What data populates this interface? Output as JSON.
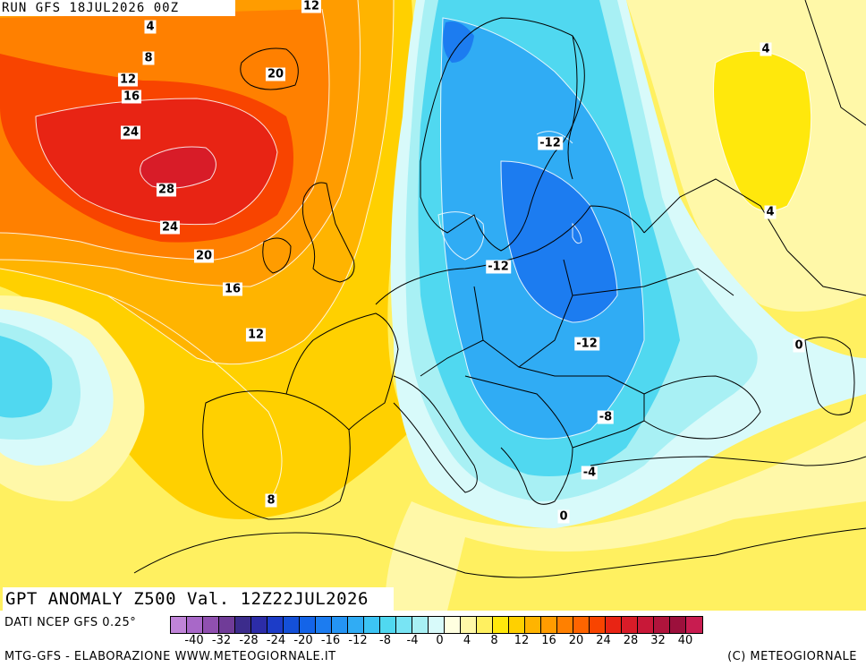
{
  "map": {
    "run_label": "RUN GFS 18JUL2026 00Z",
    "title": "GPT ANOMALY Z500 Val. 12Z22JUL2026",
    "contour_labels": [
      {
        "text": "4",
        "pos": "north-atlantic-top"
      },
      {
        "text": "8",
        "pos": "north-atlantic"
      },
      {
        "text": "12",
        "pos": "north-atlantic"
      },
      {
        "text": "16",
        "pos": "north-atlantic"
      },
      {
        "text": "24",
        "pos": "north-atlantic"
      },
      {
        "text": "28",
        "pos": "north-atlantic-core"
      },
      {
        "text": "24",
        "pos": "north-atlantic"
      },
      {
        "text": "20",
        "pos": "north-atlantic"
      },
      {
        "text": "20",
        "pos": "iceland"
      },
      {
        "text": "16",
        "pos": "ireland"
      },
      {
        "text": "12",
        "pos": "bay-of-biscay"
      },
      {
        "text": "12",
        "pos": "top-edge"
      },
      {
        "text": "8",
        "pos": "iberia"
      },
      {
        "text": "4",
        "pos": "russia-north"
      },
      {
        "text": "4",
        "pos": "russia-south"
      },
      {
        "text": "-12",
        "pos": "finland"
      },
      {
        "text": "-12",
        "pos": "poland"
      },
      {
        "text": "-12",
        "pos": "ukraine"
      },
      {
        "text": "-8",
        "pos": "black-sea-west"
      },
      {
        "text": "-4",
        "pos": "greece-north"
      },
      {
        "text": "0",
        "pos": "greece-south"
      },
      {
        "text": "0",
        "pos": "caspian"
      }
    ]
  },
  "legend": {
    "source_label": "DATI NCEP GFS 0.25°",
    "ticks": [
      "-40",
      "-32",
      "-28",
      "-24",
      "-20",
      "-16",
      "-12",
      "-8",
      "-4",
      "0",
      "4",
      "8",
      "12",
      "16",
      "20",
      "24",
      "28",
      "32",
      "40"
    ],
    "colors": [
      "#c084d8",
      "#a868c8",
      "#9050b0",
      "#703c98",
      "#3c2c8c",
      "#2c2ca8",
      "#1c3cc8",
      "#1450d8",
      "#1464e8",
      "#1c7cf0",
      "#2494f4",
      "#30acf4",
      "#3cc4f4",
      "#50d8f0",
      "#78e4f4",
      "#a8f0f4",
      "#d8fafa",
      "#ffffe0",
      "#fff8a8",
      "#fff060",
      "#ffe80c",
      "#ffd000",
      "#ffb400",
      "#ff9c00",
      "#ff8000",
      "#ff6400",
      "#f84400",
      "#e82414",
      "#d81c28",
      "#c81838",
      "#b0143c",
      "#9c103c",
      "#c81c50"
    ]
  },
  "credits": {
    "left": "MTG-GFS - ELABORAZIONE WWW.METEOGIORNALE.IT",
    "right": "(C) METEOGIORNALE"
  }
}
